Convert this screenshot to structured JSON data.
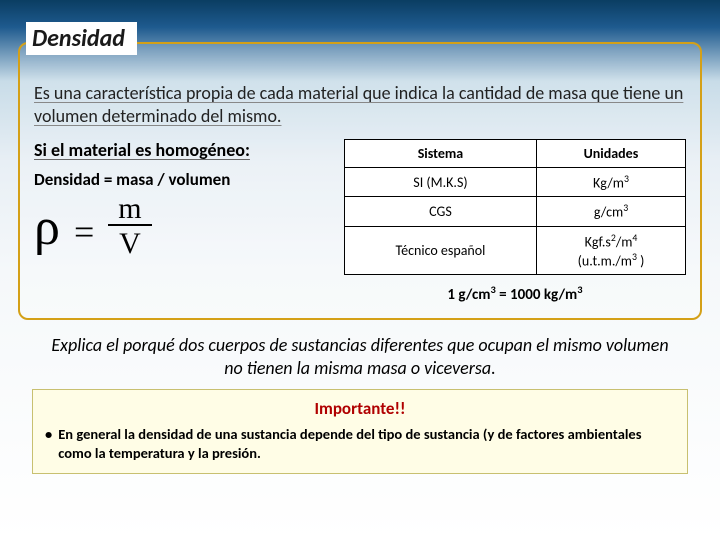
{
  "title": "Densidad",
  "definition": "Es una característica propia de cada material que indica la cantidad de masa que tiene un volumen determinado del mismo.",
  "homogeneous_line": "Si el material es homogéneo:",
  "density_eq_text": "Densidad = masa / volumen",
  "formula": {
    "rho": "ρ",
    "equals": "=",
    "numerator": "m",
    "denominator": "V"
  },
  "table": {
    "headers": {
      "system": "Sistema",
      "units": "Unidades"
    },
    "rows": [
      {
        "system": "SI  (M.K.S)",
        "units_html": "Kg/m<span class='sup'>3</span>"
      },
      {
        "system": "CGS",
        "units_html": "g/cm<span class='sup'>3</span>"
      },
      {
        "system": "Técnico español",
        "units_html": "Kgf.s<span class='sup'>2</span>/m<span class='sup'>4</span><br>(u.t.m./m<span class='sup'>3</span> )"
      }
    ],
    "border_color": "#000000",
    "bg_color": "#ffffff"
  },
  "conversion_html": "1 g/cm<span class='sup'>3</span>  = 1000 kg/m<span class='sup'>3</span>",
  "explanation": "Explica el porqué dos cuerpos de sustancias diferentes que ocupan el mismo volumen no tienen la misma masa o viceversa.",
  "important": {
    "title": "Importante!!",
    "bullet": "En general la densidad de una sustancia depende del tipo de sustancia (y de factores ambientales como la temperatura y la presión.",
    "box_bg": "#fffde6",
    "box_border": "#c8c070",
    "title_color": "#b00000"
  },
  "colors": {
    "frame_border": "#d4a017",
    "bg_gradient_top": "#0a3d62",
    "bg_gradient_bottom": "#ffffff"
  }
}
